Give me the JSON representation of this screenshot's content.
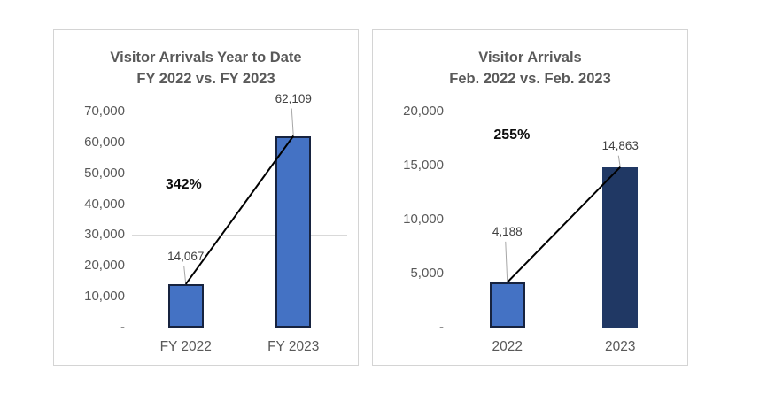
{
  "colors": {
    "bar_blue": "#4472c4",
    "bar_navy": "#203864",
    "bar_border_dark": "#17233f",
    "grid": "#d9d9d9",
    "axis_text": "#595959",
    "data_label": "#404040",
    "leader_line": "#a6a6a6",
    "trend_line": "#000000",
    "panel_border": "#d4d4d4",
    "title_text": "#595959",
    "percent_text": "#0d0d0d"
  },
  "chart_data": [
    {
      "type": "bar",
      "title_line1": "Visitor Arrivals Year to Date",
      "title_line2": "FY 2022 vs. FY 2023",
      "categories": [
        "FY 2022",
        "FY 2023"
      ],
      "values": [
        14067,
        62109
      ],
      "value_labels": [
        "14,067",
        "62,109"
      ],
      "bar_colors": [
        "#4472c4",
        "#4472c4"
      ],
      "bar_borders": [
        "#17233f",
        "#17233f"
      ],
      "ylim": [
        0,
        70000
      ],
      "ytick_labels": [
        "70,000",
        "60,000",
        "50,000",
        "40,000",
        "30,000",
        "20,000",
        "10,000",
        "-"
      ],
      "grid": true,
      "legend": "none",
      "trend_line": true,
      "percent_label": "342%",
      "percent_pos": {
        "x_pct": 24,
        "y_pct": 34
      },
      "label_gaps": [
        22,
        33
      ]
    },
    {
      "type": "bar",
      "title_line1": "Visitor Arrivals",
      "title_line2": "Feb. 2022 vs. Feb. 2023",
      "categories": [
        "2022",
        "2023"
      ],
      "values": [
        4188,
        14863
      ],
      "value_labels": [
        "4,188",
        "14,863"
      ],
      "bar_colors": [
        "#4472c4",
        "#203864"
      ],
      "bar_borders": [
        "#17233f",
        "#203864"
      ],
      "ylim": [
        0,
        20000
      ],
      "ytick_labels": [
        "20,000",
        "15,000",
        "10,000",
        "5,000",
        "-"
      ],
      "grid": true,
      "legend": "none",
      "trend_line": true,
      "percent_label": "255%",
      "percent_pos": {
        "x_pct": 27,
        "y_pct": 11
      },
      "label_gaps": [
        48,
        15
      ]
    }
  ]
}
